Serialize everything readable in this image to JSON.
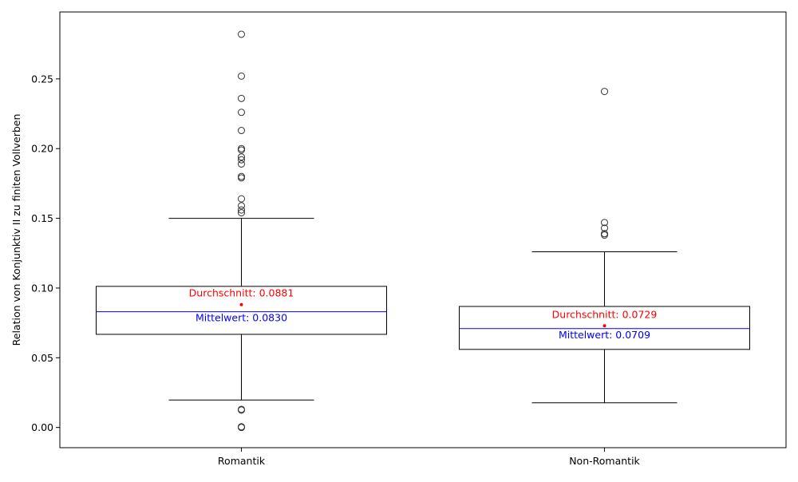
{
  "chart_data": {
    "type": "box",
    "ylabel": "Relation von Konjunktiv II zu finiten Vollverben",
    "xlabel": "",
    "ylim": [
      -0.0145,
      0.298
    ],
    "yticks": [
      0.0,
      0.05,
      0.1,
      0.15,
      0.2,
      0.25
    ],
    "ytick_labels": [
      "0.00",
      "0.05",
      "0.10",
      "0.15",
      "0.20",
      "0.25"
    ],
    "grid": false,
    "colors": {
      "box": "#000000",
      "median": "#0000ff",
      "mean": "#ff0000",
      "outlier": "#333333"
    },
    "groups": [
      {
        "label": "Romantik",
        "whisker_low": 0.0197,
        "q1": 0.0668,
        "median": 0.083,
        "q3": 0.1012,
        "whisker_high": 0.15,
        "mean": 0.0881,
        "mean_label": "Durchschnitt: 0.0881",
        "median_label": "Mittelwert: 0.0830",
        "outliers": [
          0.282,
          0.252,
          0.236,
          0.226,
          0.213,
          0.2,
          0.199,
          0.194,
          0.192,
          0.189,
          0.18,
          0.179,
          0.164,
          0.159,
          0.156,
          0.154,
          0.013,
          0.0125,
          0.0005,
          0.0
        ]
      },
      {
        "label": "Non-Romantik",
        "whisker_low": 0.0177,
        "q1": 0.056,
        "median": 0.0709,
        "q3": 0.0868,
        "whisker_high": 0.126,
        "mean": 0.0729,
        "mean_label": "Durchschnitt: 0.0729",
        "median_label": "Mittelwert: 0.0709",
        "outliers": [
          0.241,
          0.147,
          0.143,
          0.139,
          0.138
        ]
      }
    ]
  }
}
